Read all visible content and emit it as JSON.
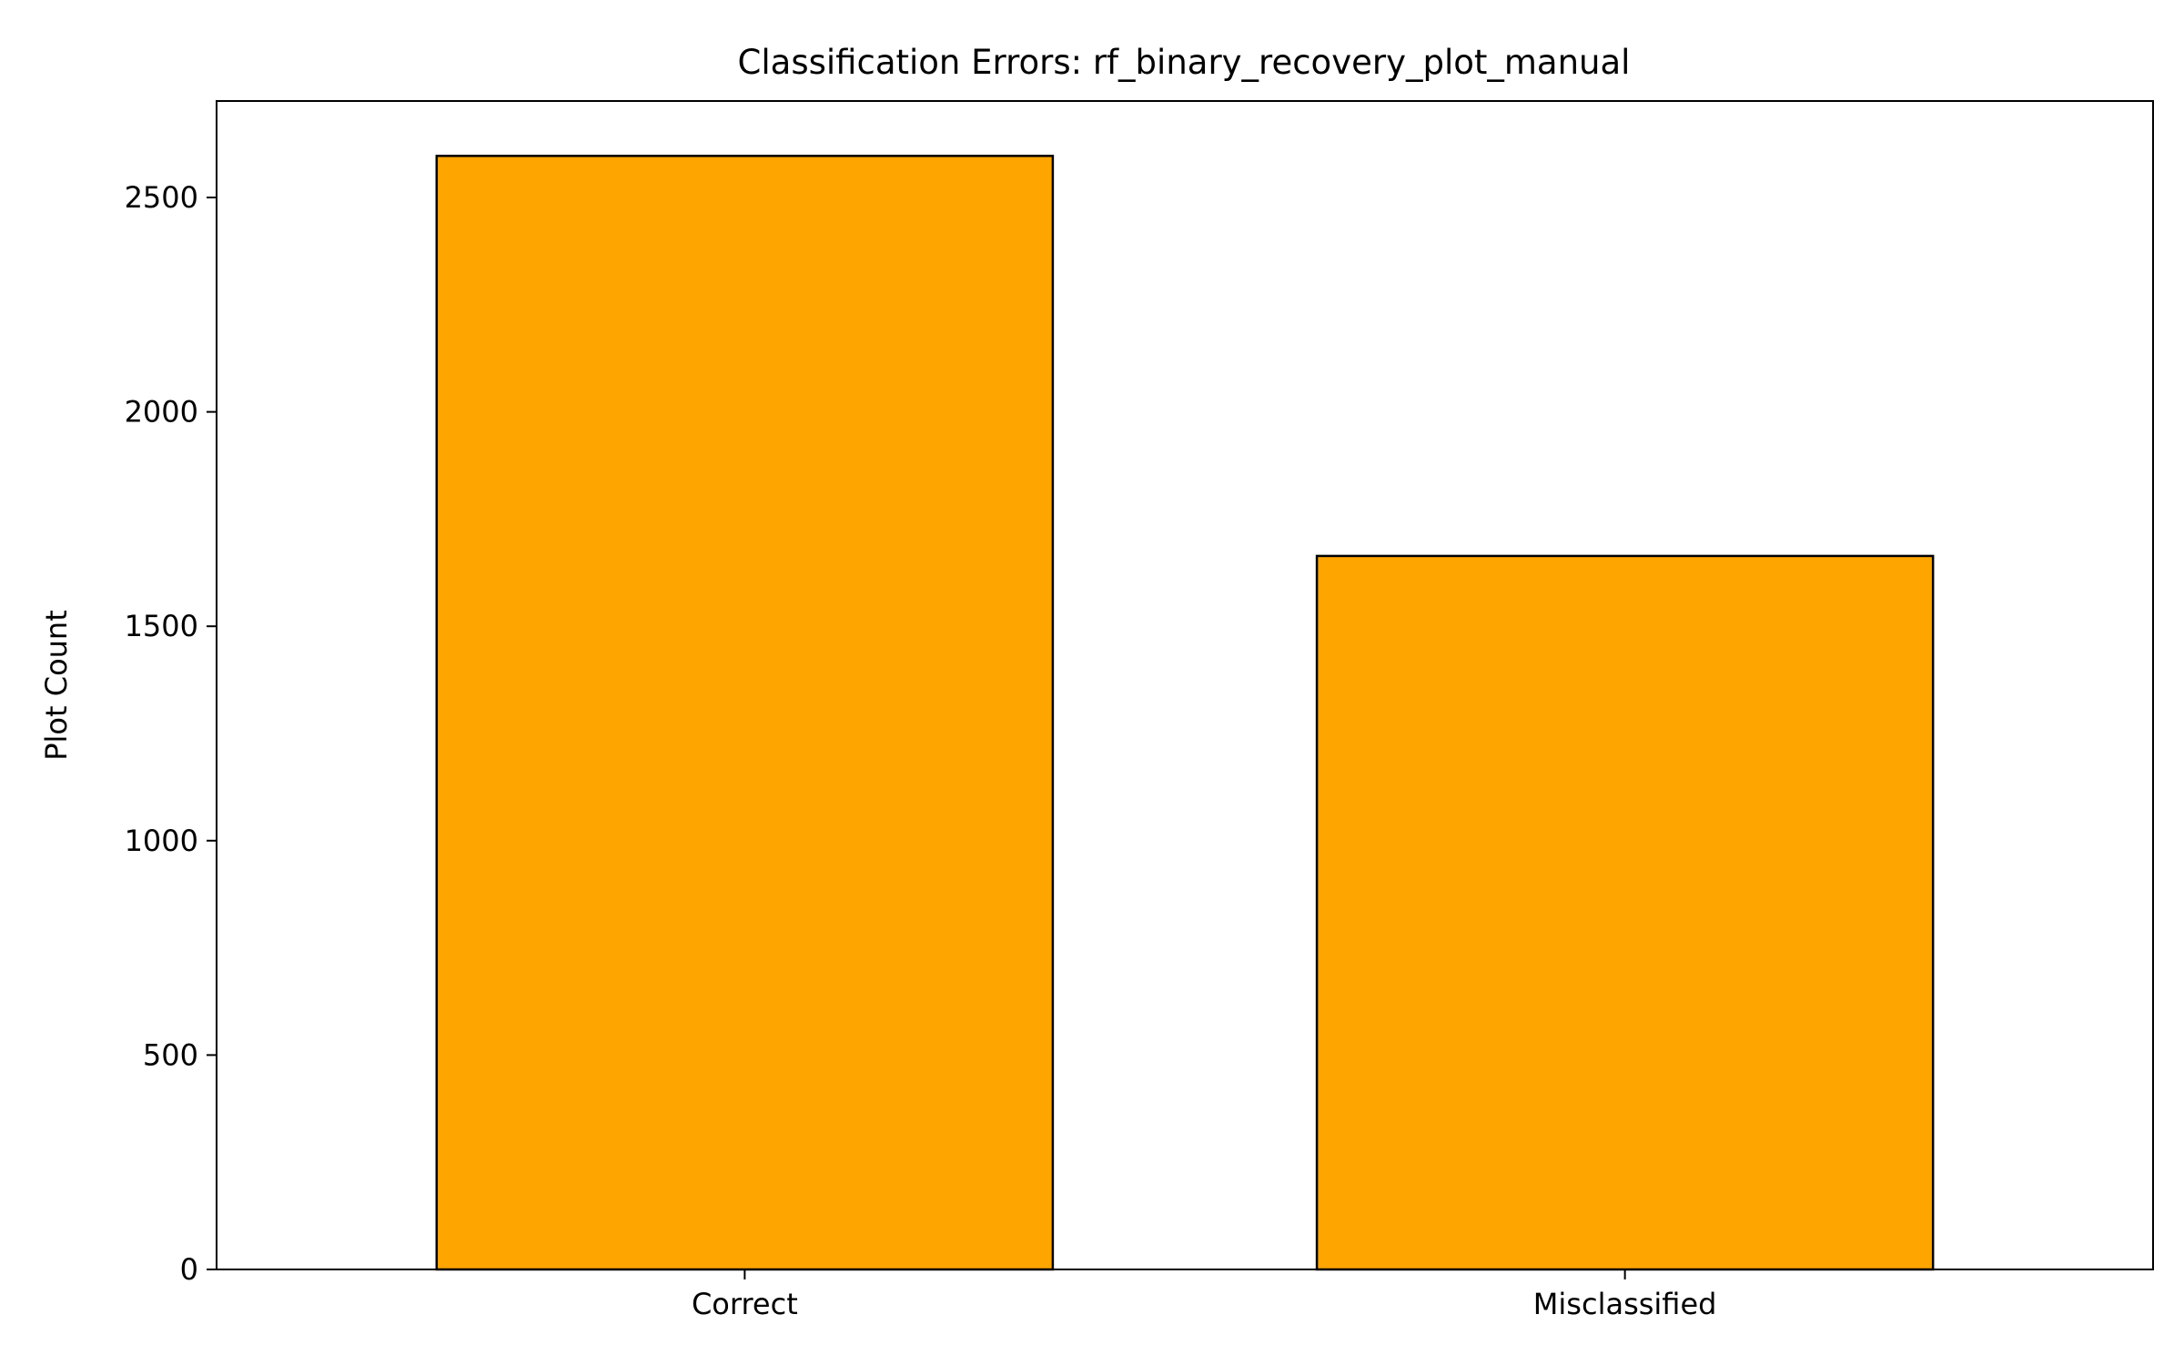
{
  "chart_data": {
    "type": "bar",
    "title": "Classification Errors: rf_binary_recovery_plot_manual",
    "xlabel": "",
    "ylabel": "Plot Count",
    "categories": [
      "Correct",
      "Misclassified"
    ],
    "values": [
      2597,
      1664
    ],
    "ylim": [
      0,
      2725
    ],
    "yticks": [
      0,
      500,
      1000,
      1500,
      2000,
      2500
    ],
    "grid": false,
    "legend": "none",
    "colors": {
      "bar_fill": "#FFA500",
      "bar_edge": "#000000",
      "axis": "#000000",
      "background": "#FFFFFF"
    }
  }
}
